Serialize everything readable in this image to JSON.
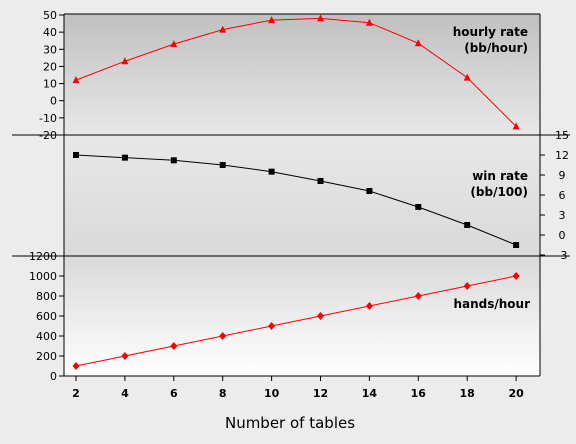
{
  "chart_data": {
    "type": "line",
    "x_title": "Number of tables",
    "x": [
      2,
      4,
      6,
      8,
      10,
      12,
      14,
      16,
      18,
      20
    ],
    "grid": false,
    "panels": [
      {
        "id": "hourly",
        "title_lines": [
          "hourly rate",
          "(bb/hour)"
        ],
        "y_axis": "left",
        "ylim": [
          -20,
          50
        ],
        "yticks": [
          -20,
          -10,
          0,
          10,
          20,
          30,
          40,
          50
        ],
        "marker": "triangle",
        "color": "#ff0000",
        "values": [
          12,
          23,
          33,
          41.5,
          47,
          48,
          45.5,
          33.5,
          13.5,
          -15
        ]
      },
      {
        "id": "winrate",
        "title_lines": [
          "win rate",
          "(bb/100)"
        ],
        "y_axis": "right",
        "ylim": [
          -3,
          15
        ],
        "yticks": [
          -3,
          0,
          3,
          6,
          9,
          12,
          15
        ],
        "marker": "square",
        "color": "#000000",
        "values": [
          12,
          11.6,
          11.2,
          10.5,
          9.5,
          8.1,
          6.6,
          4.2,
          1.5,
          -1.5
        ]
      },
      {
        "id": "hands",
        "title_lines": [
          "hands/hour"
        ],
        "y_axis": "left",
        "ylim": [
          0,
          1200
        ],
        "yticks": [
          0,
          200,
          400,
          600,
          800,
          1000,
          1200
        ],
        "marker": "diamond",
        "color": "#ff0000",
        "values": [
          100,
          200,
          300,
          400,
          500,
          600,
          700,
          800,
          900,
          1000
        ]
      }
    ]
  }
}
